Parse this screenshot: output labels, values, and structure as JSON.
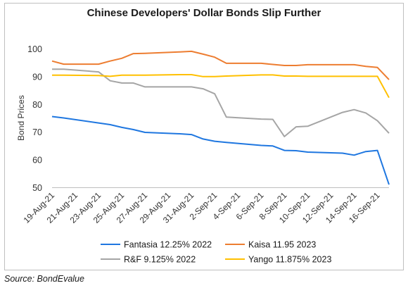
{
  "chart_data": {
    "type": "line",
    "title": "Chinese Developers' Dollar Bonds Slip Further",
    "xlabel": "",
    "ylabel": "Bond Prices",
    "ylim": [
      50,
      100
    ],
    "yticks": [
      50,
      60,
      70,
      80,
      90,
      100
    ],
    "grid": false,
    "legend_position": "bottom",
    "x_tick_labels": [
      "19-Aug-21",
      "21-Aug-21",
      "23-Aug-21",
      "25-Aug-21",
      "27-Aug-21",
      "29-Aug-21",
      "31-Aug-21",
      "2-Sep-21",
      "4-Sep-21",
      "6-Sep-21",
      "8-Sep-21",
      "10-Sep-21",
      "12-Sep-21",
      "14-Sep-21",
      "16-Sep-21"
    ],
    "series": [
      {
        "name": "Fantasia 12.25% 2022",
        "color": "#1f77e0",
        "points": [
          [
            "2021-08-19",
            75.5
          ],
          [
            "2021-08-20",
            75.0
          ],
          [
            "2021-08-23",
            73.2
          ],
          [
            "2021-08-24",
            72.6
          ],
          [
            "2021-08-25",
            71.6
          ],
          [
            "2021-08-26",
            70.8
          ],
          [
            "2021-08-27",
            69.8
          ],
          [
            "2021-08-30",
            69.3
          ],
          [
            "2021-08-31",
            69.0
          ],
          [
            "2021-09-01",
            67.4
          ],
          [
            "2021-09-02",
            66.6
          ],
          [
            "2021-09-03",
            66.2
          ],
          [
            "2021-09-06",
            65.1
          ],
          [
            "2021-09-07",
            64.9
          ],
          [
            "2021-09-08",
            63.3
          ],
          [
            "2021-09-09",
            63.2
          ],
          [
            "2021-09-10",
            62.7
          ],
          [
            "2021-09-13",
            62.3
          ],
          [
            "2021-09-14",
            61.6
          ],
          [
            "2021-09-15",
            62.9
          ],
          [
            "2021-09-16",
            63.3
          ],
          [
            "2021-09-17",
            51.0
          ]
        ]
      },
      {
        "name": "Kaisa 11.95 2023",
        "color": "#ed7d31",
        "points": [
          [
            "2021-08-19",
            95.5
          ],
          [
            "2021-08-20",
            94.4
          ],
          [
            "2021-08-23",
            94.4
          ],
          [
            "2021-08-24",
            95.5
          ],
          [
            "2021-08-25",
            96.5
          ],
          [
            "2021-08-26",
            98.2
          ],
          [
            "2021-08-27",
            98.3
          ],
          [
            "2021-08-30",
            98.8
          ],
          [
            "2021-08-31",
            99.0
          ],
          [
            "2021-09-01",
            98.0
          ],
          [
            "2021-09-02",
            96.9
          ],
          [
            "2021-09-03",
            94.7
          ],
          [
            "2021-09-06",
            94.7
          ],
          [
            "2021-09-07",
            94.3
          ],
          [
            "2021-09-08",
            93.9
          ],
          [
            "2021-09-09",
            93.9
          ],
          [
            "2021-09-10",
            94.2
          ],
          [
            "2021-09-13",
            94.2
          ],
          [
            "2021-09-14",
            94.2
          ],
          [
            "2021-09-15",
            93.6
          ],
          [
            "2021-09-16",
            93.2
          ],
          [
            "2021-09-17",
            88.8
          ]
        ]
      },
      {
        "name": "R&F 9.125% 2022",
        "color": "#a5a5a5",
        "points": [
          [
            "2021-08-19",
            92.6
          ],
          [
            "2021-08-20",
            92.6
          ],
          [
            "2021-08-23",
            91.6
          ],
          [
            "2021-08-24",
            88.4
          ],
          [
            "2021-08-25",
            87.6
          ],
          [
            "2021-08-26",
            87.6
          ],
          [
            "2021-08-27",
            86.2
          ],
          [
            "2021-08-30",
            86.2
          ],
          [
            "2021-08-31",
            86.2
          ],
          [
            "2021-09-01",
            85.5
          ],
          [
            "2021-09-02",
            83.7
          ],
          [
            "2021-09-03",
            75.3
          ],
          [
            "2021-09-06",
            74.6
          ],
          [
            "2021-09-07",
            74.5
          ],
          [
            "2021-09-08",
            68.3
          ],
          [
            "2021-09-09",
            71.8
          ],
          [
            "2021-09-10",
            72.0
          ],
          [
            "2021-09-13",
            77.0
          ],
          [
            "2021-09-14",
            78.0
          ],
          [
            "2021-09-15",
            76.8
          ],
          [
            "2021-09-16",
            74.0
          ],
          [
            "2021-09-17",
            69.5
          ]
        ]
      },
      {
        "name": "Yango 11.875% 2023",
        "color": "#ffc000",
        "points": [
          [
            "2021-08-19",
            90.4
          ],
          [
            "2021-08-20",
            90.4
          ],
          [
            "2021-08-23",
            90.3
          ],
          [
            "2021-08-24",
            90.0
          ],
          [
            "2021-08-25",
            90.4
          ],
          [
            "2021-08-26",
            90.4
          ],
          [
            "2021-08-27",
            90.4
          ],
          [
            "2021-08-30",
            90.6
          ],
          [
            "2021-08-31",
            90.6
          ],
          [
            "2021-09-01",
            89.9
          ],
          [
            "2021-09-02",
            89.9
          ],
          [
            "2021-09-03",
            90.1
          ],
          [
            "2021-09-06",
            90.5
          ],
          [
            "2021-09-07",
            90.5
          ],
          [
            "2021-09-08",
            90.1
          ],
          [
            "2021-09-09",
            90.1
          ],
          [
            "2021-09-10",
            90.0
          ],
          [
            "2021-09-13",
            90.0
          ],
          [
            "2021-09-14",
            90.0
          ],
          [
            "2021-09-15",
            90.0
          ],
          [
            "2021-09-16",
            90.0
          ],
          [
            "2021-09-17",
            82.3
          ]
        ]
      }
    ]
  },
  "source": "Source: BondEvalue"
}
